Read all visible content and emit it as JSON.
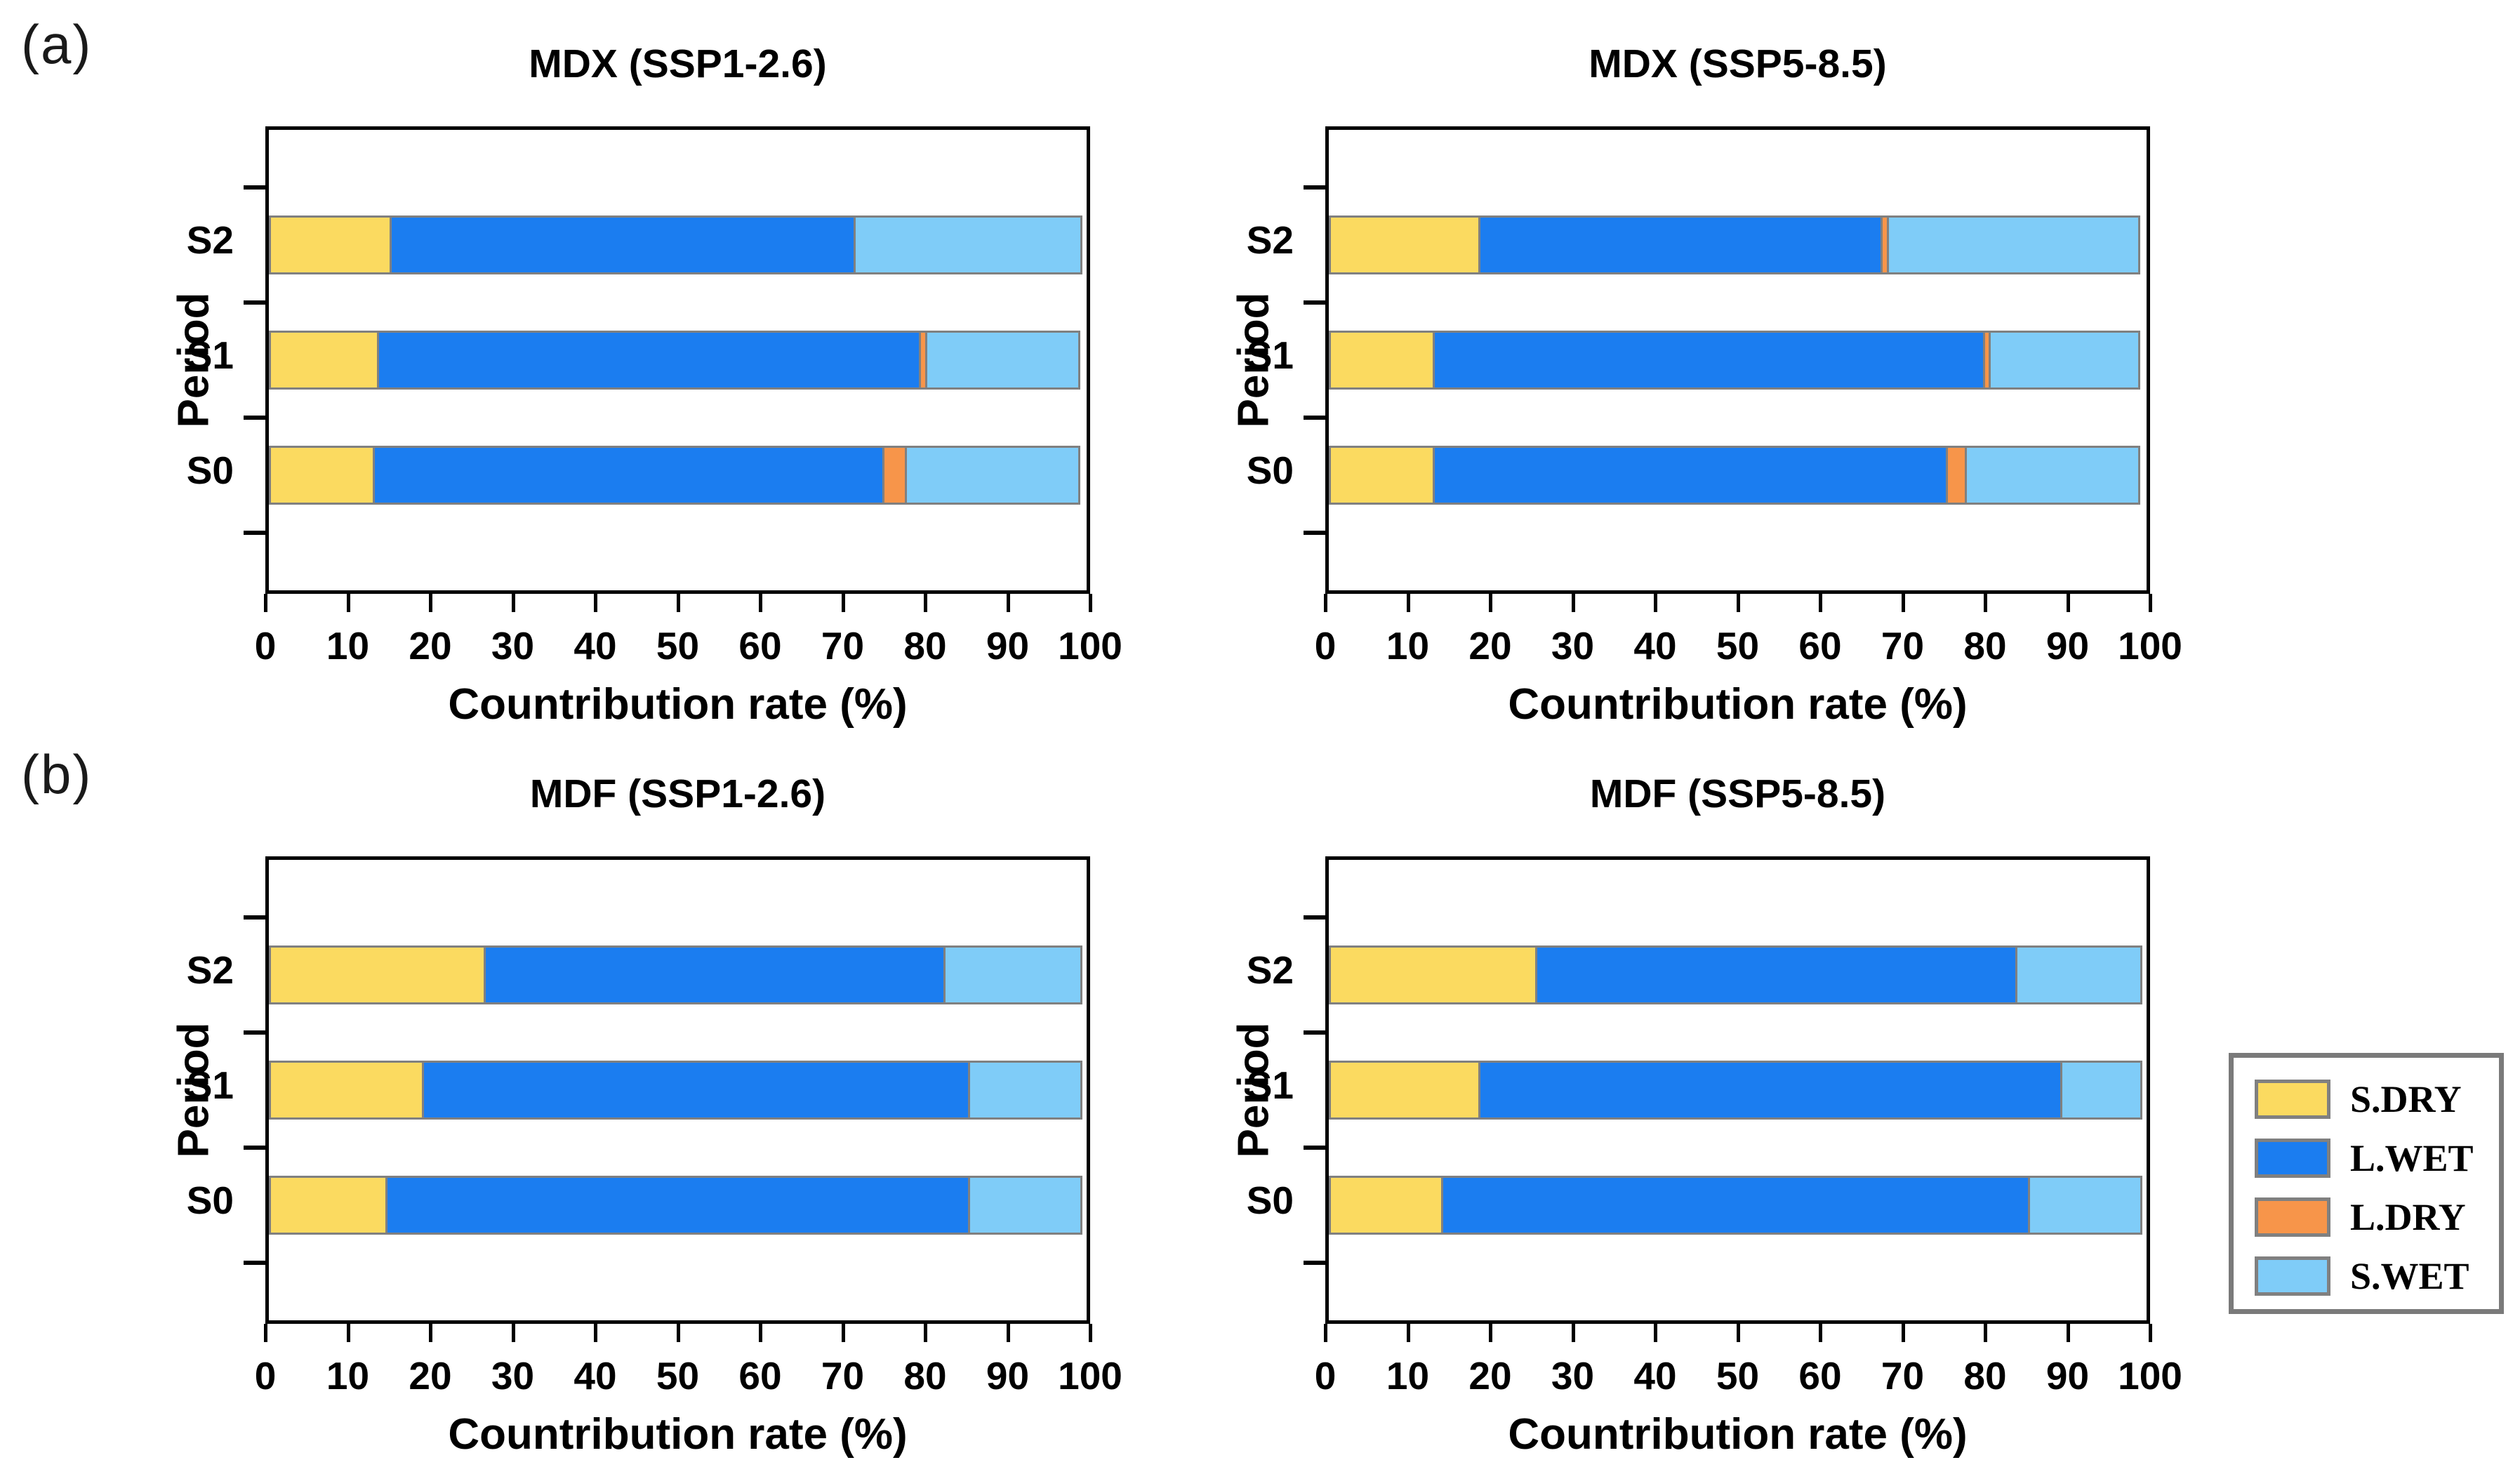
{
  "panels": [
    {
      "label": "(a)"
    },
    {
      "label": "(b)"
    }
  ],
  "legend": {
    "position": "right",
    "entries": [
      {
        "label": "S.DRY",
        "color": "#FBDA60"
      },
      {
        "label": "L.WET",
        "color": "#1B7DF0"
      },
      {
        "label": "L.DRY",
        "color": "#F7954A"
      },
      {
        "label": "S.WET",
        "color": "#7FCCF8"
      }
    ]
  },
  "colors": {
    "s_dry": "#FBDA60",
    "l_wet": "#1B7DF0",
    "l_dry": "#F7954A",
    "s_wet": "#7FCCF8",
    "segment_border": "#808080",
    "axis": "#000000",
    "legend_border": "#7A7A7A"
  },
  "chart_data": [
    {
      "type": "bar",
      "orientation": "horizontal",
      "stacked": true,
      "panel": "a",
      "title": "MDX (SSP1-2.6)",
      "xlabel": "Countribution rate (%)",
      "ylabel": "Period",
      "xlim": [
        0,
        100
      ],
      "xticks": [
        0,
        10,
        20,
        30,
        40,
        50,
        60,
        70,
        80,
        90,
        100
      ],
      "categories": [
        "S2",
        "S1",
        "S0"
      ],
      "series": [
        {
          "name": "S.DRY",
          "values": [
            15,
            13.5,
            13
          ]
        },
        {
          "name": "L.WET",
          "values": [
            57,
            66.5,
            62.5
          ]
        },
        {
          "name": "L.DRY",
          "values": [
            0,
            1,
            3
          ]
        },
        {
          "name": "S.WET",
          "values": [
            28,
            19,
            21.5
          ]
        }
      ]
    },
    {
      "type": "bar",
      "orientation": "horizontal",
      "stacked": true,
      "panel": "a",
      "title": "MDX (SSP5-8.5)",
      "xlabel": "Countribution rate (%)",
      "ylabel": "Period",
      "xlim": [
        0,
        100
      ],
      "xticks": [
        0,
        10,
        20,
        30,
        40,
        50,
        60,
        70,
        80,
        90,
        100
      ],
      "categories": [
        "S2",
        "S1",
        "S0"
      ],
      "series": [
        {
          "name": "S.DRY",
          "values": [
            18.5,
            13,
            13
          ]
        },
        {
          "name": "L.WET",
          "values": [
            49.5,
            67.5,
            63
          ]
        },
        {
          "name": "L.DRY",
          "values": [
            1,
            1,
            2.5
          ]
        },
        {
          "name": "S.WET",
          "values": [
            31,
            18.5,
            21.5
          ]
        }
      ]
    },
    {
      "type": "bar",
      "orientation": "horizontal",
      "stacked": true,
      "panel": "b",
      "title": "MDF (SSP1-2.6)",
      "xlabel": "Countribution rate (%)",
      "ylabel": "Period",
      "xlim": [
        0,
        100
      ],
      "xticks": [
        0,
        10,
        20,
        30,
        40,
        50,
        60,
        70,
        80,
        90,
        100
      ],
      "categories": [
        "S2",
        "S1",
        "S0"
      ],
      "series": [
        {
          "name": "S.DRY",
          "values": [
            26.5,
            19,
            14.5
          ]
        },
        {
          "name": "L.WET",
          "values": [
            56.5,
            67,
            71.5
          ]
        },
        {
          "name": "L.DRY",
          "values": [
            0,
            0,
            0
          ]
        },
        {
          "name": "S.WET",
          "values": [
            17,
            14,
            14
          ]
        }
      ]
    },
    {
      "type": "bar",
      "orientation": "horizontal",
      "stacked": true,
      "panel": "b",
      "title": "MDF (SSP5-8.5)",
      "xlabel": "Countribution rate (%)",
      "ylabel": "Period",
      "xlim": [
        0,
        100
      ],
      "xticks": [
        0,
        10,
        20,
        30,
        40,
        50,
        60,
        70,
        80,
        90,
        100
      ],
      "categories": [
        "S2",
        "S1",
        "S0"
      ],
      "series": [
        {
          "name": "S.DRY",
          "values": [
            25.5,
            18.5,
            14
          ]
        },
        {
          "name": "L.WET",
          "values": [
            59,
            71.5,
            72
          ]
        },
        {
          "name": "L.DRY",
          "values": [
            0,
            0,
            0
          ]
        },
        {
          "name": "S.WET",
          "values": [
            15.5,
            10,
            14
          ]
        }
      ]
    }
  ]
}
